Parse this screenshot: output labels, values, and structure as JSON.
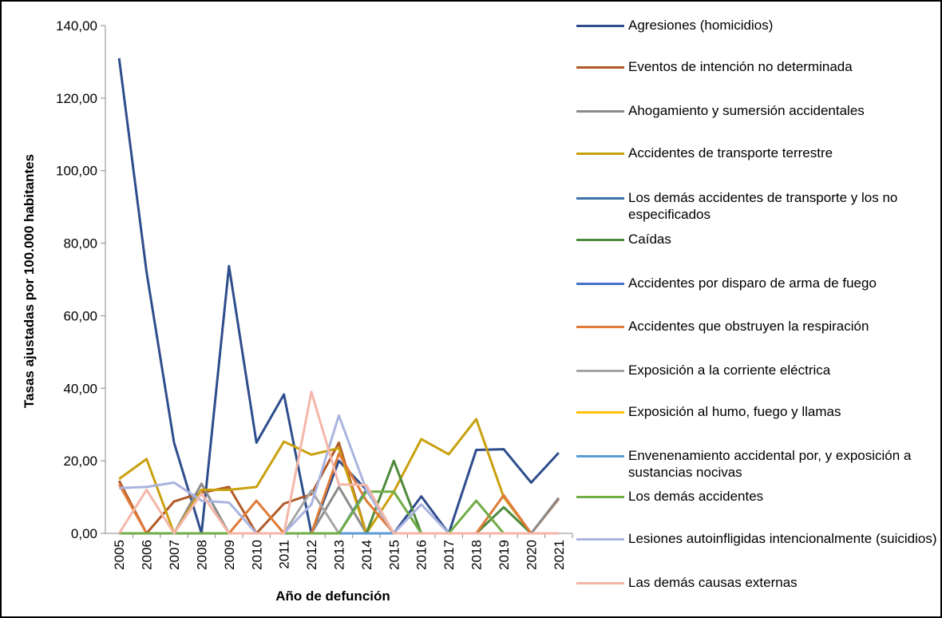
{
  "chart_data": {
    "type": "line",
    "x_label": "Año de defunción",
    "y_label": "Tasas ajustadas por 100.000 habitantes",
    "categories": [
      "2005",
      "2006",
      "2007",
      "2008",
      "2009",
      "2010",
      "2011",
      "2012",
      "2013",
      "2014",
      "2015",
      "2016",
      "2017",
      "2018",
      "2019",
      "2020",
      "2021"
    ],
    "ylim": [
      0,
      140
    ],
    "yticks": [
      {
        "value": 0,
        "label": "0,00"
      },
      {
        "value": 20,
        "label": "20,00"
      },
      {
        "value": 40,
        "label": "40,00"
      },
      {
        "value": 60,
        "label": "60,00"
      },
      {
        "value": 80,
        "label": "80,00"
      },
      {
        "value": 100,
        "label": "100,00"
      },
      {
        "value": 120,
        "label": "120,00"
      },
      {
        "value": 140,
        "label": "140,00"
      }
    ],
    "series": [
      {
        "name": "Agresiones (homicidios)",
        "color": "#2E4D8C",
        "values": [
          131,
          72,
          25,
          0,
          73.7,
          25,
          38.3,
          0,
          20,
          12,
          0,
          10.2,
          0,
          23,
          23.2,
          14,
          22.2
        ]
      },
      {
        "name": "Eventos de intención no determinada",
        "color": "#B05A28",
        "values": [
          14.5,
          0,
          8.8,
          11.2,
          12.8,
          0,
          8.2,
          10.8,
          25,
          0,
          0,
          0,
          0,
          0,
          0,
          0,
          9.5
        ]
      },
      {
        "name": "Ahogamiento y sumersión accidentales",
        "color": "#8C8C8C",
        "values": [
          0,
          0,
          0,
          13.7,
          0,
          0,
          0,
          0,
          12.8,
          0,
          0,
          0,
          0,
          0,
          0,
          0,
          9.8
        ]
      },
      {
        "name": "Accidentes de transporte terrestre",
        "color": "#C9A00E",
        "values": [
          15,
          20.5,
          0,
          12,
          12,
          12.8,
          25.3,
          21.7,
          23.5,
          0,
          11.5,
          26,
          21.8,
          31.5,
          10,
          0,
          0
        ]
      },
      {
        "name": "Los demás accidentes de transporte y los no especificados",
        "color": "#3A72A8",
        "values": [
          0,
          0,
          0,
          0,
          0,
          0,
          0,
          0,
          0,
          12,
          0,
          0,
          0,
          0,
          0,
          0,
          0
        ]
      },
      {
        "name": "Caídas",
        "color": "#4E8A3A",
        "values": [
          0,
          0,
          0,
          0,
          0,
          0,
          0,
          0,
          0,
          0,
          20,
          0,
          0,
          0,
          7.2,
          0,
          0
        ]
      },
      {
        "name": "Accidentes por disparo de arma de fuego",
        "color": "#4472C4",
        "values": [
          0,
          0,
          0,
          0,
          0,
          0,
          0,
          0,
          0,
          0,
          0,
          0,
          0,
          0,
          0,
          0,
          0
        ]
      },
      {
        "name": "Accidentes que obstruyen la respiración",
        "color": "#E07B39",
        "values": [
          13.5,
          0,
          0,
          0,
          0,
          9,
          0,
          0,
          22,
          9,
          0,
          0,
          0,
          0,
          10.5,
          0,
          0
        ]
      },
      {
        "name": "Exposición a la corriente eléctrica",
        "color": "#A5A5A5",
        "values": [
          0,
          0,
          0,
          0,
          0,
          0,
          0,
          11.8,
          0,
          0,
          0,
          0,
          0,
          0,
          0,
          0,
          0
        ]
      },
      {
        "name": "Exposición al humo, fuego y llamas",
        "color": "#FFC000",
        "values": [
          0,
          0,
          0,
          0,
          0,
          0,
          0,
          0,
          0,
          0,
          0,
          0,
          0,
          0,
          0,
          0,
          0
        ]
      },
      {
        "name": "Envenenamiento accidental por, y exposición a sustancias nocivas",
        "color": "#5B9BD5",
        "values": [
          0,
          0,
          0,
          0,
          0,
          0,
          0,
          0,
          0,
          0,
          0,
          0,
          0,
          0,
          0,
          0,
          0
        ]
      },
      {
        "name": "Los demás accidentes",
        "color": "#70AD47",
        "values": [
          0,
          0,
          0,
          0,
          0,
          0,
          0,
          0,
          0,
          11.5,
          11.5,
          0,
          0,
          9,
          0,
          0,
          0
        ]
      },
      {
        "name": "Lesiones autoinfligidas intencionalmente (suicidios)",
        "color": "#A9B4E0",
        "values": [
          12.5,
          12.8,
          14,
          9,
          8.5,
          0,
          0,
          8,
          32.5,
          12,
          0,
          8,
          0,
          0,
          0,
          0,
          0
        ]
      },
      {
        "name": "Las demás causas externas",
        "color": "#F4B6A8",
        "values": [
          0,
          12,
          0,
          11,
          0,
          0,
          0,
          39,
          13.5,
          13.3,
          0,
          0,
          0,
          0,
          0,
          0,
          0
        ]
      }
    ]
  }
}
